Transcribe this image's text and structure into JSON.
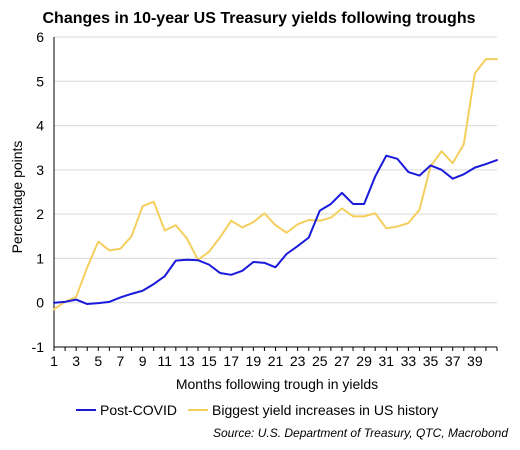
{
  "chart_data": {
    "type": "line",
    "title": "Changes in 10-year US Treasury yields following troughs",
    "xlabel": "Months following trough in yields",
    "ylabel": "Percentage points",
    "xlim": [
      1,
      41
    ],
    "ylim": [
      -1,
      6
    ],
    "x_ticks": [
      1,
      3,
      5,
      7,
      9,
      11,
      13,
      15,
      17,
      19,
      21,
      23,
      25,
      27,
      29,
      31,
      33,
      35,
      37,
      39
    ],
    "y_ticks": [
      -1,
      0,
      1,
      2,
      3,
      4,
      5,
      6
    ],
    "grid": "horizontal",
    "legend_placement": "bottom",
    "source": "Source: U.S. Department of Treasury, QTC, Macrobond",
    "series": [
      {
        "name": "Post-COVID",
        "color": "#1a1adb",
        "x": [
          1,
          2,
          3,
          4,
          5,
          6,
          7,
          8,
          9,
          10,
          11,
          12,
          13,
          14,
          15,
          16,
          17,
          18,
          19,
          20,
          21,
          22,
          23,
          24,
          25,
          26,
          27,
          28,
          29,
          30,
          31,
          32,
          33,
          34,
          35,
          36,
          37,
          38,
          39,
          40,
          41
        ],
        "values": [
          0.0,
          0.02,
          0.07,
          -0.03,
          -0.01,
          0.02,
          0.12,
          0.2,
          0.27,
          0.42,
          0.6,
          0.95,
          0.97,
          0.96,
          0.86,
          0.67,
          0.63,
          0.72,
          0.92,
          0.9,
          0.8,
          1.1,
          1.28,
          1.47,
          2.08,
          2.23,
          2.48,
          2.23,
          2.23,
          2.85,
          3.32,
          3.25,
          2.95,
          2.87,
          3.1,
          3.0,
          2.8,
          2.9,
          3.05,
          3.13,
          3.22
        ]
      },
      {
        "name": "Biggest yield increases in US history",
        "color": "#f5cf5d",
        "x": [
          1,
          2,
          3,
          4,
          5,
          6,
          7,
          8,
          9,
          10,
          11,
          12,
          13,
          14,
          15,
          16,
          17,
          18,
          19,
          20,
          21,
          22,
          23,
          24,
          25,
          26,
          27,
          28,
          29,
          30,
          31,
          32,
          33,
          34,
          35,
          36,
          37,
          38,
          39,
          40,
          41
        ],
        "values": [
          -0.15,
          0.02,
          0.13,
          0.8,
          1.38,
          1.18,
          1.22,
          1.5,
          2.18,
          2.28,
          1.63,
          1.75,
          1.45,
          0.97,
          1.15,
          1.48,
          1.85,
          1.7,
          1.82,
          2.02,
          1.75,
          1.58,
          1.77,
          1.87,
          1.85,
          1.92,
          2.13,
          1.95,
          1.95,
          2.02,
          1.68,
          1.72,
          1.8,
          2.1,
          3.08,
          3.42,
          3.15,
          3.58,
          5.18,
          5.5,
          5.5
        ]
      }
    ]
  }
}
